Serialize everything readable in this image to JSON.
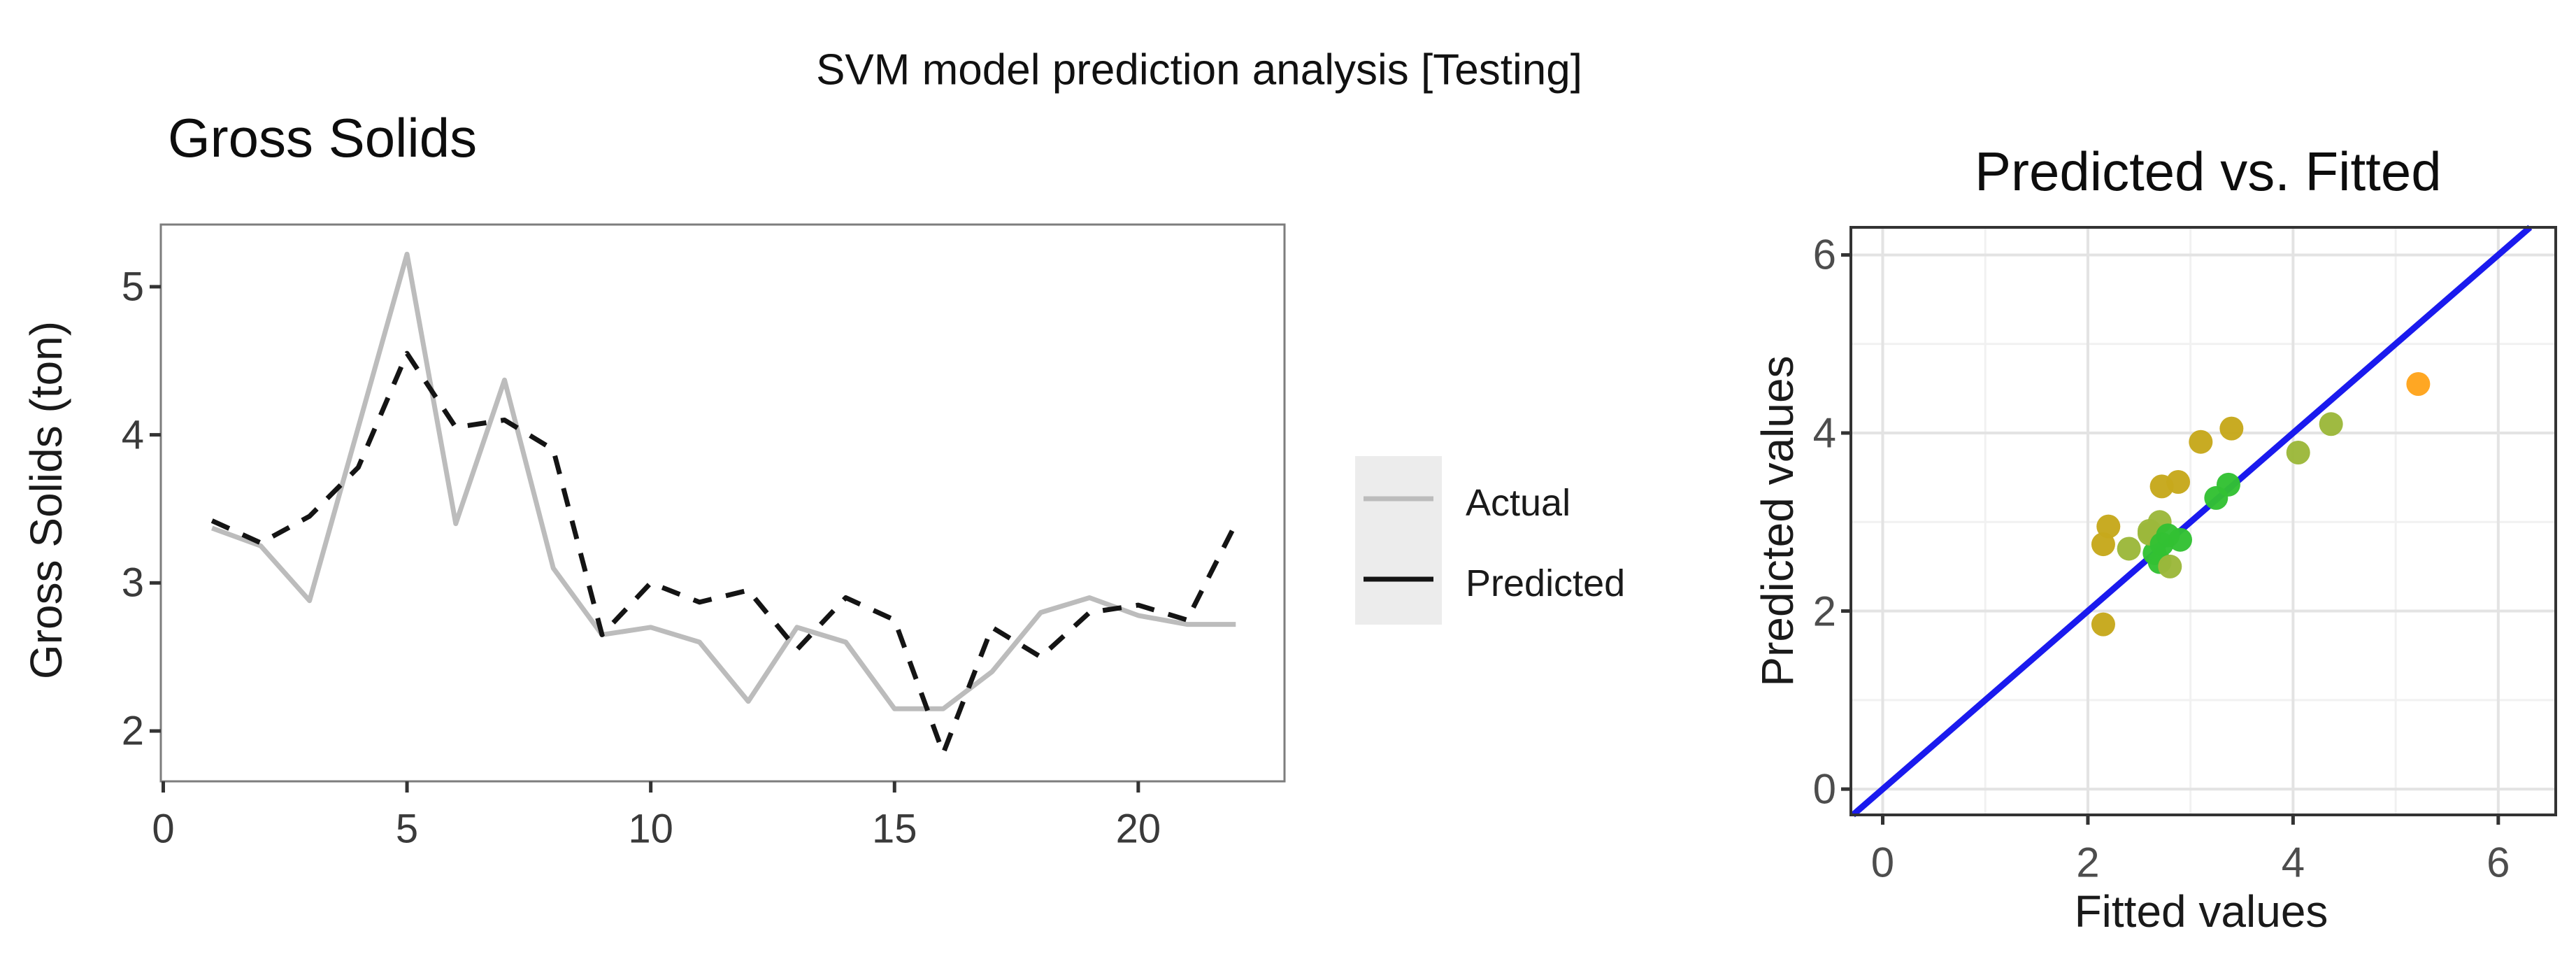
{
  "main_title": "SVM model prediction analysis [Testing]",
  "legend": {
    "key_background": "#ececec",
    "entries": [
      {
        "label": "Actual",
        "color": "#bcbcbc",
        "dash": false
      },
      {
        "label": "Predicted",
        "color": "#141414",
        "dash": false
      }
    ]
  },
  "colors": {
    "actual_line": "#bcbcbc",
    "predicted_line": "#141414",
    "identity_line": "#1a1aee",
    "point_green": "#33c133",
    "point_yellowgreen": "#9cb83b",
    "point_olive": "#c6a81c",
    "point_orange": "#ffa41c",
    "grid_major": "#e3e3e3",
    "grid_minor": "#f1f1f1",
    "left_panel_border": "#7d7d7d",
    "right_panel_border": "#333333",
    "tick_color": "#333333"
  },
  "chart_data": [
    {
      "type": "line",
      "title": "Gross Solids",
      "xlabel": "",
      "ylabel": "Gross Solids (ton)",
      "x": [
        1,
        2,
        3,
        4,
        5,
        6,
        7,
        8,
        9,
        10,
        11,
        12,
        13,
        14,
        15,
        16,
        17,
        18,
        19,
        20,
        21,
        22
      ],
      "series": [
        {
          "name": "Actual",
          "style": "solid",
          "values": [
            3.37,
            3.25,
            2.88,
            4.05,
            5.22,
            3.4,
            4.37,
            3.1,
            2.65,
            2.7,
            2.6,
            2.2,
            2.7,
            2.6,
            2.15,
            2.15,
            2.4,
            2.8,
            2.9,
            2.78,
            2.72,
            2.72
          ]
        },
        {
          "name": "Predicted",
          "style": "dashed",
          "values": [
            3.42,
            3.27,
            3.45,
            3.78,
            4.55,
            4.05,
            4.1,
            3.9,
            2.65,
            3.0,
            2.87,
            2.95,
            2.55,
            2.9,
            2.75,
            1.85,
            2.7,
            2.5,
            2.8,
            2.85,
            2.75,
            3.4
          ]
        }
      ],
      "xticks": [
        0,
        5,
        10,
        15,
        20
      ],
      "yticks": [
        2,
        3,
        4,
        5
      ],
      "xlim": [
        -0.05,
        23.0
      ],
      "ylim": [
        1.66,
        5.42
      ],
      "grid": false,
      "legend_position": "right"
    },
    {
      "type": "scatter",
      "title": "Predicted vs. Fitted",
      "xlabel": "Fitted values",
      "ylabel": "Predicted values",
      "identity_line": true,
      "points": [
        {
          "x": 3.37,
          "y": 3.42,
          "c": "point_green"
        },
        {
          "x": 3.25,
          "y": 3.27,
          "c": "point_green"
        },
        {
          "x": 2.88,
          "y": 3.45,
          "c": "point_olive"
        },
        {
          "x": 4.05,
          "y": 3.78,
          "c": "point_yellowgreen"
        },
        {
          "x": 5.22,
          "y": 4.55,
          "c": "point_orange"
        },
        {
          "x": 3.4,
          "y": 4.05,
          "c": "point_olive"
        },
        {
          "x": 4.37,
          "y": 4.1,
          "c": "point_yellowgreen"
        },
        {
          "x": 3.1,
          "y": 3.9,
          "c": "point_olive"
        },
        {
          "x": 2.65,
          "y": 2.65,
          "c": "point_green"
        },
        {
          "x": 2.7,
          "y": 3.0,
          "c": "point_yellowgreen"
        },
        {
          "x": 2.6,
          "y": 2.87,
          "c": "point_yellowgreen"
        },
        {
          "x": 2.2,
          "y": 2.95,
          "c": "point_olive"
        },
        {
          "x": 2.7,
          "y": 2.55,
          "c": "point_green"
        },
        {
          "x": 2.6,
          "y": 2.9,
          "c": "point_yellowgreen"
        },
        {
          "x": 2.15,
          "y": 2.75,
          "c": "point_olive"
        },
        {
          "x": 2.15,
          "y": 1.85,
          "c": "point_olive"
        },
        {
          "x": 2.4,
          "y": 2.7,
          "c": "point_yellowgreen"
        },
        {
          "x": 2.8,
          "y": 2.5,
          "c": "point_yellowgreen"
        },
        {
          "x": 2.9,
          "y": 2.8,
          "c": "point_green"
        },
        {
          "x": 2.78,
          "y": 2.85,
          "c": "point_green"
        },
        {
          "x": 2.72,
          "y": 2.75,
          "c": "point_green"
        },
        {
          "x": 2.72,
          "y": 3.4,
          "c": "point_olive"
        }
      ],
      "xticks": [
        0,
        2,
        4,
        6
      ],
      "yticks": [
        0,
        2,
        4,
        6
      ],
      "minor_ticks": [
        1,
        3,
        5
      ],
      "xlim": [
        -0.31,
        6.56
      ],
      "ylim": [
        -0.29,
        6.31
      ],
      "grid": true
    }
  ]
}
